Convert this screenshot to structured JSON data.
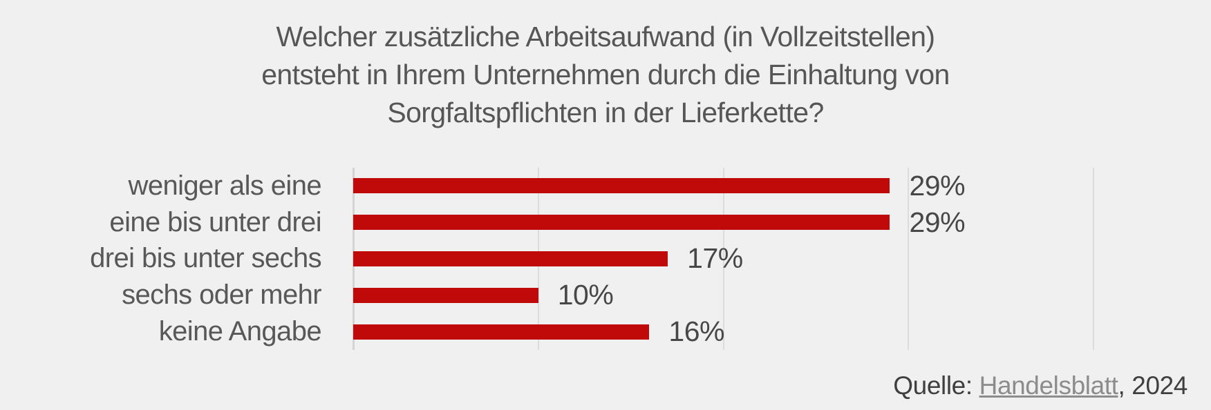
{
  "background_color": "#f0f0f0",
  "title": {
    "lines": [
      "Welcher zusätzliche Arbeitsaufwand (in Vollzeitstellen)",
      "entsteht in Ihrem Unternehmen durch die Einhaltung von",
      "Sorgfaltspflichten in der Lieferkette?"
    ],
    "color": "#565656"
  },
  "chart_data": {
    "type": "bar",
    "orientation": "horizontal",
    "title": "Welcher zusätzliche Arbeitsaufwand (in Vollzeitstellen) entsteht in Ihrem Unternehmen durch die Einhaltung von Sorgfaltspflichten in der Lieferkette?",
    "categories": [
      "weniger als eine",
      "eine bis unter drei",
      "drei bis unter sechs",
      "sechs oder mehr",
      "keine Angabe"
    ],
    "values": [
      29,
      29,
      17,
      10,
      16
    ],
    "value_labels": [
      "29%",
      "29%",
      "17%",
      "10%",
      "16%"
    ],
    "unit": "%",
    "xlim": [
      0,
      40
    ],
    "gridline_values": [
      0,
      10,
      20,
      30,
      40
    ],
    "grid": true,
    "legend": false,
    "bar_color": "#c00a0a",
    "label_color": "#585858",
    "value_color": "#474747",
    "axis_color": "#d4d4d4",
    "gridline_color": "#dcdcdc"
  },
  "source": {
    "prefix": "Quelle: ",
    "link_text": "Handelsblatt",
    "suffix": ", 2024",
    "text_color": "#3f3f3f",
    "link_color": "#8c8c8c"
  }
}
